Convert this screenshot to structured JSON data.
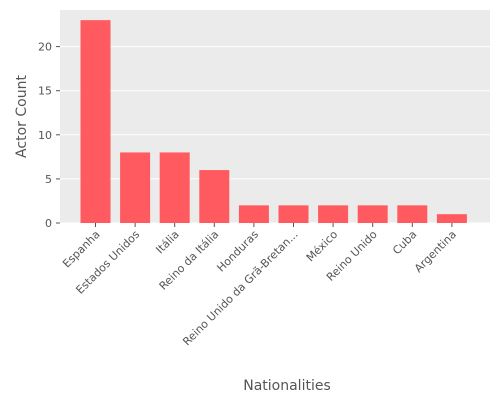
{
  "chart_data": {
    "type": "bar",
    "title": "",
    "xlabel": "Nationalities",
    "ylabel": "Actor Count",
    "categories": [
      "Espanha",
      "Estados Unidos",
      "Itália",
      "Reino da Itália",
      "Honduras",
      "Reino Unido da Grã-Bretan...",
      "México",
      "Reino Unido",
      "Cuba",
      "Argentina"
    ],
    "values": [
      23,
      8,
      8,
      6,
      2,
      2,
      2,
      2,
      2,
      1
    ],
    "ylim": [
      0,
      24.15
    ],
    "yticks": [
      0,
      5,
      10,
      15,
      20
    ],
    "grid": true,
    "bar_color": "#ff5a5f",
    "background_color": "#ebebeb",
    "grid_color": "#ffffff"
  }
}
